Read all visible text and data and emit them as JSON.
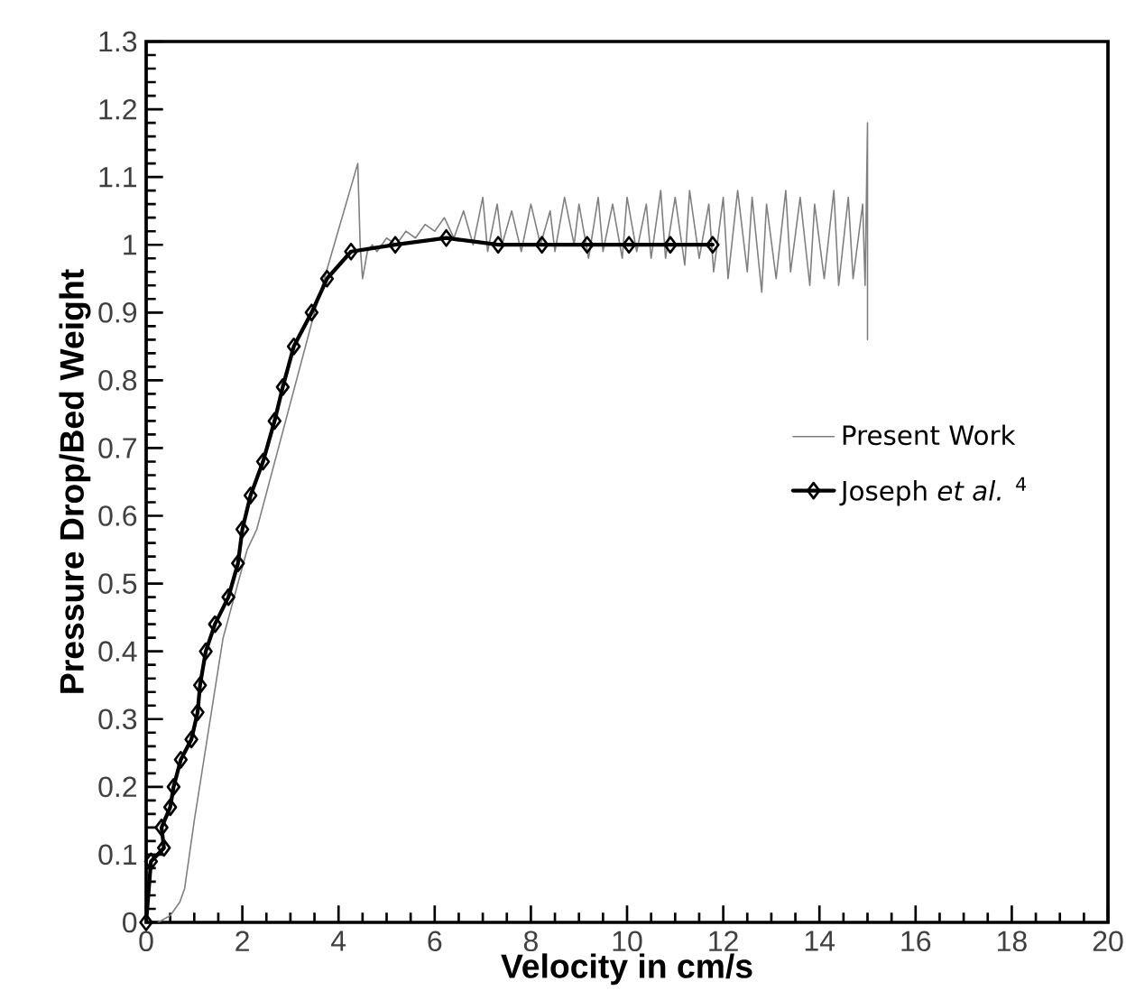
{
  "chart_data": {
    "type": "line",
    "xlabel": "Velocity in cm/s",
    "ylabel": "Pressure Drop/Bed Weight",
    "xlim": [
      0,
      20
    ],
    "xticks": [
      0,
      2,
      4,
      6,
      8,
      10,
      12,
      14,
      16,
      18,
      20
    ],
    "ylim": [
      0,
      1.3
    ],
    "yticks": [
      0,
      0.1,
      0.2,
      0.3,
      0.4,
      0.5,
      0.6,
      0.7,
      0.8,
      0.9,
      1,
      1.1,
      1.2,
      1.3
    ],
    "grid": false,
    "legend": "right",
    "series": [
      {
        "name": "Present Work",
        "color": "#808080",
        "marker": "none",
        "line_style": "solid",
        "x": [
          0.25,
          0.5,
          0.7,
          0.8,
          0.9,
          1.0,
          1.2,
          1.6,
          2.1,
          2.3,
          3.5,
          4.4,
          4.45,
          4.5,
          4.6,
          4.7,
          4.8,
          5.0,
          5.2,
          5.4,
          5.6,
          5.8,
          6.0,
          6.2,
          6.4,
          6.6,
          6.8,
          7.0,
          7.1,
          7.3,
          7.4,
          7.6,
          7.8,
          8.0,
          8.2,
          8.4,
          8.5,
          8.7,
          8.9,
          9.0,
          9.2,
          9.4,
          9.5,
          9.7,
          9.9,
          10.0,
          10.2,
          10.4,
          10.5,
          10.7,
          10.8,
          11.0,
          11.2,
          11.3,
          11.5,
          11.7,
          11.8,
          12.0,
          12.1,
          12.3,
          12.5,
          12.6,
          12.8,
          12.9,
          13.1,
          13.3,
          13.4,
          13.6,
          13.8,
          13.9,
          14.1,
          14.3,
          14.4,
          14.6,
          14.7,
          14.9,
          14.95,
          15.0,
          15.0,
          15.0
        ],
        "values": [
          0,
          0.01,
          0.03,
          0.05,
          0.1,
          0.15,
          0.24,
          0.42,
          0.55,
          0.58,
          0.9,
          1.12,
          1.0,
          0.95,
          0.99,
          1.0,
          0.99,
          1.01,
          1.0,
          1.02,
          1.01,
          1.03,
          1.02,
          1.04,
          1.01,
          1.05,
          1.0,
          1.07,
          0.99,
          1.06,
          1.0,
          1.05,
          0.99,
          1.06,
          1.0,
          1.05,
          0.99,
          1.07,
          1.0,
          1.06,
          0.98,
          1.07,
          0.99,
          1.06,
          0.98,
          1.07,
          0.99,
          1.06,
          0.98,
          1.08,
          0.98,
          1.07,
          0.97,
          1.08,
          0.98,
          1.06,
          0.96,
          1.07,
          0.95,
          1.08,
          0.96,
          1.07,
          0.93,
          1.06,
          0.95,
          1.08,
          0.96,
          1.07,
          0.94,
          1.06,
          0.95,
          1.08,
          0.94,
          1.07,
          0.95,
          1.06,
          0.94,
          1.18,
          0.86,
          1.0
        ]
      },
      {
        "name": "Joseph *et al.* $^{4}$",
        "color": "#000000",
        "marker": "diamond",
        "line_style": "solid",
        "x": [
          0,
          0.1,
          0.37,
          0.32,
          0.5,
          0.57,
          0.72,
          0.94,
          1.07,
          1.12,
          1.24,
          1.43,
          1.71,
          1.91,
          2.0,
          2.17,
          2.43,
          2.67,
          2.84,
          3.07,
          3.44,
          3.76,
          4.26,
          5.18,
          6.24,
          7.32,
          8.23,
          9.17,
          10.04,
          10.9,
          11.78
        ],
        "values": [
          0,
          0.09,
          0.11,
          0.14,
          0.17,
          0.2,
          0.24,
          0.27,
          0.31,
          0.35,
          0.4,
          0.44,
          0.48,
          0.53,
          0.58,
          0.63,
          0.68,
          0.74,
          0.79,
          0.85,
          0.9,
          0.95,
          0.99,
          1.0,
          1.01,
          1.0,
          1.0,
          1.0,
          1.0,
          1.0,
          1.0
        ]
      }
    ]
  }
}
